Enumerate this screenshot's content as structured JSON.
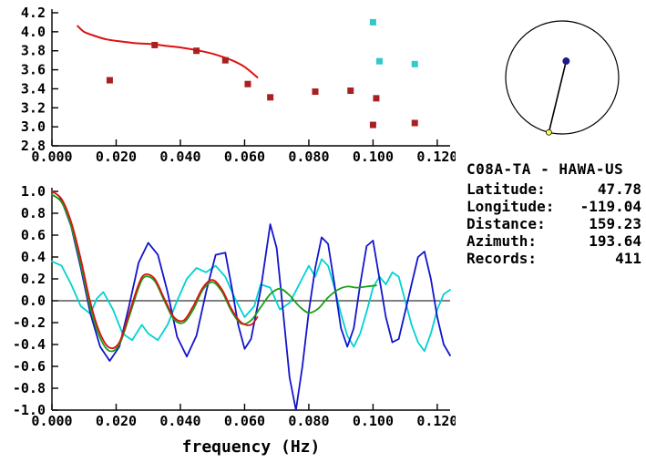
{
  "station_info": {
    "title": "C08A-TA - HAWA-US",
    "fields": [
      {
        "label": "Latitude:",
        "value": "47.78"
      },
      {
        "label": "Longitude:",
        "value": "-119.04"
      },
      {
        "label": "Distance:",
        "value": "159.23"
      },
      {
        "label": "Azimuth:",
        "value": "193.64"
      },
      {
        "label": "Records:",
        "value": "411"
      }
    ]
  },
  "chart_data": [
    {
      "id": "velocity-dispersion",
      "type": "scatter",
      "xlim": [
        0,
        0.124
      ],
      "ylim": [
        2.8,
        4.2
      ],
      "x_ticks": [
        0,
        0.02,
        0.04,
        0.06,
        0.08,
        0.1,
        0.12
      ],
      "x_tick_labels": [
        "0.000",
        "0.020",
        "0.040",
        "0.060",
        "0.080",
        "0.100",
        "0.120"
      ],
      "y_ticks": [
        2.8,
        3.0,
        3.2,
        3.4,
        3.6,
        3.8,
        4.0,
        4.2
      ],
      "y_tick_labels": [
        "2.8",
        "3.0",
        "3.2",
        "3.4",
        "3.6",
        "3.8",
        "4.0",
        "4.2"
      ],
      "xlabel": "",
      "series": [
        {
          "name": "red-curve",
          "type": "line",
          "smooth": true,
          "color": "#dd1111",
          "width": 2,
          "points": [
            [
              0.008,
              4.06
            ],
            [
              0.01,
              4.0
            ],
            [
              0.013,
              3.96
            ],
            [
              0.017,
              3.92
            ],
            [
              0.021,
              3.9
            ],
            [
              0.026,
              3.88
            ],
            [
              0.031,
              3.87
            ],
            [
              0.036,
              3.85
            ],
            [
              0.041,
              3.83
            ],
            [
              0.046,
              3.8
            ],
            [
              0.051,
              3.76
            ],
            [
              0.056,
              3.7
            ],
            [
              0.06,
              3.63
            ],
            [
              0.064,
              3.52
            ]
          ]
        },
        {
          "name": "red-squares",
          "type": "scatter",
          "marker": "square",
          "color": "#aa2020",
          "points": [
            [
              0.018,
              3.49
            ],
            [
              0.032,
              3.86
            ],
            [
              0.045,
              3.8
            ],
            [
              0.054,
              3.7
            ],
            [
              0.061,
              3.45
            ],
            [
              0.068,
              3.31
            ],
            [
              0.082,
              3.37
            ],
            [
              0.093,
              3.38
            ],
            [
              0.101,
              3.3
            ],
            [
              0.1,
              3.02
            ],
            [
              0.113,
              3.04
            ]
          ]
        },
        {
          "name": "cyan-squares",
          "type": "scatter",
          "marker": "square",
          "color": "#35c8c8",
          "points": [
            [
              0.1,
              4.1
            ],
            [
              0.102,
              3.69
            ],
            [
              0.113,
              3.66
            ]
          ]
        }
      ]
    },
    {
      "id": "spectral-traces",
      "type": "line",
      "xlim": [
        0,
        0.124
      ],
      "ylim": [
        -1.0,
        1.0
      ],
      "x_ticks": [
        0,
        0.02,
        0.04,
        0.06,
        0.08,
        0.1,
        0.12
      ],
      "x_tick_labels": [
        "0.000",
        "0.020",
        "0.040",
        "0.060",
        "0.080",
        "0.100",
        "0.120"
      ],
      "y_ticks": [
        -1.0,
        -0.8,
        -0.6,
        -0.4,
        -0.2,
        0.0,
        0.2,
        0.4,
        0.6,
        0.8,
        1.0
      ],
      "y_tick_labels": [
        "-1.0",
        "-0.8",
        "-0.6",
        "-0.4",
        "-0.2",
        "0.0",
        "0.2",
        "0.4",
        "0.6",
        "0.8",
        "1.0"
      ],
      "xlabel": "frequency (Hz)",
      "zero_line": true,
      "series": [
        {
          "name": "cyan-trace",
          "type": "line",
          "color": "#00d2d2",
          "width": 1.8,
          "points": [
            [
              0.0,
              0.36
            ],
            [
              0.003,
              0.32
            ],
            [
              0.006,
              0.15
            ],
            [
              0.009,
              -0.05
            ],
            [
              0.012,
              -0.12
            ],
            [
              0.014,
              0.02
            ],
            [
              0.016,
              0.08
            ],
            [
              0.019,
              -0.08
            ],
            [
              0.022,
              -0.3
            ],
            [
              0.025,
              -0.36
            ],
            [
              0.028,
              -0.22
            ],
            [
              0.03,
              -0.3
            ],
            [
              0.033,
              -0.36
            ],
            [
              0.036,
              -0.22
            ],
            [
              0.039,
              0.0
            ],
            [
              0.042,
              0.2
            ],
            [
              0.045,
              0.3
            ],
            [
              0.048,
              0.26
            ],
            [
              0.051,
              0.32
            ],
            [
              0.054,
              0.22
            ],
            [
              0.057,
              0.02
            ],
            [
              0.06,
              -0.15
            ],
            [
              0.063,
              -0.05
            ],
            [
              0.065,
              0.15
            ],
            [
              0.068,
              0.12
            ],
            [
              0.071,
              -0.08
            ],
            [
              0.074,
              -0.02
            ],
            [
              0.077,
              0.15
            ],
            [
              0.08,
              0.32
            ],
            [
              0.082,
              0.22
            ],
            [
              0.084,
              0.38
            ],
            [
              0.086,
              0.32
            ],
            [
              0.088,
              0.12
            ],
            [
              0.09,
              -0.12
            ],
            [
              0.092,
              -0.32
            ],
            [
              0.094,
              -0.42
            ],
            [
              0.096,
              -0.3
            ],
            [
              0.098,
              -0.1
            ],
            [
              0.1,
              0.12
            ],
            [
              0.102,
              0.22
            ],
            [
              0.104,
              0.15
            ],
            [
              0.106,
              0.26
            ],
            [
              0.108,
              0.22
            ],
            [
              0.11,
              0.0
            ],
            [
              0.112,
              -0.22
            ],
            [
              0.114,
              -0.38
            ],
            [
              0.116,
              -0.46
            ],
            [
              0.118,
              -0.3
            ],
            [
              0.12,
              -0.08
            ],
            [
              0.122,
              0.06
            ],
            [
              0.124,
              0.1
            ]
          ]
        },
        {
          "name": "blue-trace",
          "type": "line",
          "color": "#1414cd",
          "width": 1.8,
          "points": [
            [
              0.0,
              0.97
            ],
            [
              0.003,
              0.92
            ],
            [
              0.006,
              0.68
            ],
            [
              0.009,
              0.3
            ],
            [
              0.012,
              -0.12
            ],
            [
              0.015,
              -0.42
            ],
            [
              0.018,
              -0.55
            ],
            [
              0.021,
              -0.42
            ],
            [
              0.024,
              -0.05
            ],
            [
              0.027,
              0.35
            ],
            [
              0.03,
              0.53
            ],
            [
              0.033,
              0.42
            ],
            [
              0.036,
              0.08
            ],
            [
              0.039,
              -0.33
            ],
            [
              0.042,
              -0.51
            ],
            [
              0.045,
              -0.32
            ],
            [
              0.048,
              0.08
            ],
            [
              0.051,
              0.42
            ],
            [
              0.054,
              0.44
            ],
            [
              0.056,
              0.12
            ],
            [
              0.058,
              -0.22
            ],
            [
              0.06,
              -0.44
            ],
            [
              0.062,
              -0.35
            ],
            [
              0.065,
              0.1
            ],
            [
              0.068,
              0.7
            ],
            [
              0.07,
              0.48
            ],
            [
              0.072,
              -0.1
            ],
            [
              0.074,
              -0.7
            ],
            [
              0.076,
              -1.0
            ],
            [
              0.078,
              -0.6
            ],
            [
              0.08,
              -0.1
            ],
            [
              0.082,
              0.3
            ],
            [
              0.084,
              0.58
            ],
            [
              0.086,
              0.52
            ],
            [
              0.088,
              0.15
            ],
            [
              0.09,
              -0.25
            ],
            [
              0.092,
              -0.42
            ],
            [
              0.094,
              -0.25
            ],
            [
              0.096,
              0.15
            ],
            [
              0.098,
              0.5
            ],
            [
              0.1,
              0.55
            ],
            [
              0.102,
              0.2
            ],
            [
              0.104,
              -0.15
            ],
            [
              0.106,
              -0.38
            ],
            [
              0.108,
              -0.35
            ],
            [
              0.11,
              -0.1
            ],
            [
              0.112,
              0.15
            ],
            [
              0.114,
              0.4
            ],
            [
              0.116,
              0.45
            ],
            [
              0.118,
              0.2
            ],
            [
              0.12,
              -0.15
            ],
            [
              0.122,
              -0.4
            ],
            [
              0.124,
              -0.5
            ]
          ]
        },
        {
          "name": "green-trace",
          "type": "line",
          "smooth": true,
          "color": "#18a018",
          "width": 1.8,
          "points": [
            [
              0.0,
              0.97
            ],
            [
              0.003,
              0.9
            ],
            [
              0.006,
              0.68
            ],
            [
              0.009,
              0.33
            ],
            [
              0.012,
              -0.07
            ],
            [
              0.015,
              -0.34
            ],
            [
              0.018,
              -0.46
            ],
            [
              0.021,
              -0.4
            ],
            [
              0.024,
              -0.15
            ],
            [
              0.027,
              0.12
            ],
            [
              0.029,
              0.22
            ],
            [
              0.032,
              0.18
            ],
            [
              0.035,
              0.0
            ],
            [
              0.038,
              -0.17
            ],
            [
              0.041,
              -0.2
            ],
            [
              0.044,
              -0.08
            ],
            [
              0.047,
              0.1
            ],
            [
              0.05,
              0.17
            ],
            [
              0.053,
              0.08
            ],
            [
              0.056,
              -0.1
            ],
            [
              0.059,
              -0.21
            ],
            [
              0.062,
              -0.18
            ],
            [
              0.065,
              -0.06
            ],
            [
              0.068,
              0.06
            ],
            [
              0.071,
              0.11
            ],
            [
              0.074,
              0.05
            ],
            [
              0.077,
              -0.05
            ],
            [
              0.08,
              -0.11
            ],
            [
              0.083,
              -0.07
            ],
            [
              0.086,
              0.03
            ],
            [
              0.089,
              0.1
            ],
            [
              0.092,
              0.13
            ],
            [
              0.095,
              0.12
            ],
            [
              0.098,
              0.13
            ],
            [
              0.101,
              0.14
            ]
          ]
        },
        {
          "name": "red-trace",
          "type": "line",
          "smooth": true,
          "color": "#dd1111",
          "width": 1.8,
          "points": [
            [
              0.0,
              1.0
            ],
            [
              0.003,
              0.93
            ],
            [
              0.006,
              0.72
            ],
            [
              0.009,
              0.38
            ],
            [
              0.012,
              -0.02
            ],
            [
              0.015,
              -0.3
            ],
            [
              0.018,
              -0.43
            ],
            [
              0.021,
              -0.38
            ],
            [
              0.024,
              -0.12
            ],
            [
              0.027,
              0.15
            ],
            [
              0.029,
              0.24
            ],
            [
              0.032,
              0.2
            ],
            [
              0.035,
              0.02
            ],
            [
              0.038,
              -0.15
            ],
            [
              0.041,
              -0.18
            ],
            [
              0.044,
              -0.05
            ],
            [
              0.047,
              0.12
            ],
            [
              0.05,
              0.19
            ],
            [
              0.053,
              0.1
            ],
            [
              0.056,
              -0.08
            ],
            [
              0.059,
              -0.2
            ],
            [
              0.062,
              -0.22
            ],
            [
              0.064,
              -0.15
            ]
          ]
        }
      ]
    },
    {
      "id": "station-azimuth-map",
      "type": "polar-location",
      "azimuth_deg": 193.64,
      "station_dot_frac": [
        0.07,
        -0.29
      ],
      "station_color": "#1a1a8c",
      "event_color": "#ffff4d"
    }
  ]
}
